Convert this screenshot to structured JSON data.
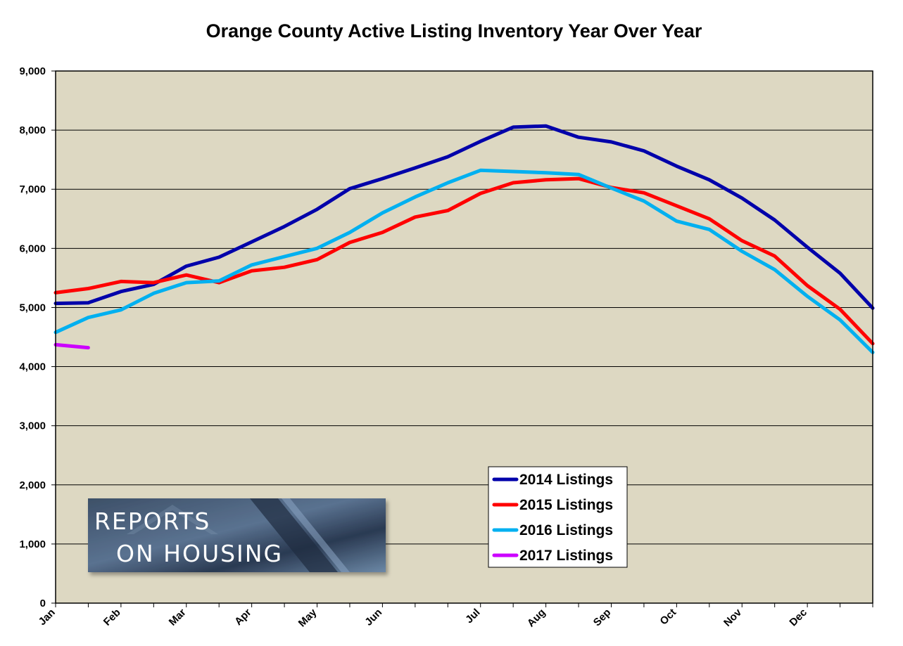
{
  "chart_data": {
    "type": "line",
    "title": "Orange County Active Listing Inventory Year Over Year",
    "xlabel": "",
    "ylabel": "",
    "ylim": [
      0,
      9000
    ],
    "y_ticks": [
      "0",
      "1,000",
      "2,000",
      "3,000",
      "4,000",
      "5,000",
      "6,000",
      "7,000",
      "8,000",
      "9,000"
    ],
    "y_tick_values": [
      0,
      1000,
      2000,
      3000,
      4000,
      5000,
      6000,
      7000,
      8000,
      9000
    ],
    "grid": true,
    "plot_background": "#ddd8c2",
    "x_tick_labels": [
      {
        "label": "Jan",
        "week": 0
      },
      {
        "label": "Feb",
        "week": 2
      },
      {
        "label": "Mar",
        "week": 4
      },
      {
        "label": "Apr",
        "week": 6
      },
      {
        "label": "May",
        "week": 8
      },
      {
        "label": "Jun",
        "week": 10
      },
      {
        "label": "Jul",
        "week": 13
      },
      {
        "label": "Aug",
        "week": 15
      },
      {
        "label": "Sep",
        "week": 17
      },
      {
        "label": "Oct",
        "week": 19
      },
      {
        "label": "Nov",
        "week": 21
      },
      {
        "label": "Dec",
        "week": 23
      }
    ],
    "x_range": [
      0,
      25
    ],
    "legend_position": "bottom-center",
    "series": [
      {
        "name": "2014 Listings",
        "color": "#0000aa",
        "weeks": [
          0,
          1,
          2,
          3,
          4,
          5,
          6,
          7,
          8,
          9,
          10,
          11,
          12,
          13,
          14,
          15,
          16,
          17,
          18,
          19,
          20,
          21,
          22,
          23,
          24,
          25
        ],
        "values": [
          5070,
          5080,
          5270,
          5390,
          5700,
          5850,
          6110,
          6370,
          6660,
          7010,
          7180,
          7360,
          7550,
          7810,
          8050,
          8070,
          7880,
          7800,
          7650,
          7390,
          7160,
          6850,
          6480,
          6020,
          5580,
          4990
        ]
      },
      {
        "name": "2015 Listings",
        "color": "#ff0000",
        "weeks": [
          0,
          1,
          2,
          3,
          4,
          5,
          6,
          7,
          8,
          9,
          10,
          11,
          12,
          13,
          14,
          15,
          16,
          17,
          18,
          19,
          20,
          21,
          22,
          23,
          24,
          25
        ],
        "values": [
          5250,
          5320,
          5440,
          5420,
          5550,
          5420,
          5620,
          5680,
          5810,
          6100,
          6270,
          6530,
          6640,
          6930,
          7110,
          7160,
          7180,
          7030,
          6940,
          6720,
          6500,
          6130,
          5870,
          5370,
          4970,
          4390
        ]
      },
      {
        "name": "2016 Listings",
        "color": "#00b0f0",
        "weeks": [
          0,
          1,
          2,
          3,
          4,
          5,
          6,
          7,
          8,
          9,
          10,
          11,
          12,
          13,
          14,
          15,
          16,
          17,
          18,
          19,
          20,
          21,
          22,
          23,
          24,
          25
        ],
        "values": [
          4580,
          4830,
          4960,
          5240,
          5420,
          5450,
          5720,
          5860,
          6000,
          6270,
          6600,
          6870,
          7110,
          7320,
          7300,
          7280,
          7250,
          7020,
          6800,
          6460,
          6320,
          5950,
          5640,
          5190,
          4790,
          4240
        ]
      },
      {
        "name": "2017 Listings",
        "color": "#cc00ff",
        "weeks": [
          0,
          1
        ],
        "values": [
          4370,
          4320
        ]
      }
    ]
  },
  "logo": {
    "line1": "REPORTS",
    "line2": "ON HOUSING"
  }
}
